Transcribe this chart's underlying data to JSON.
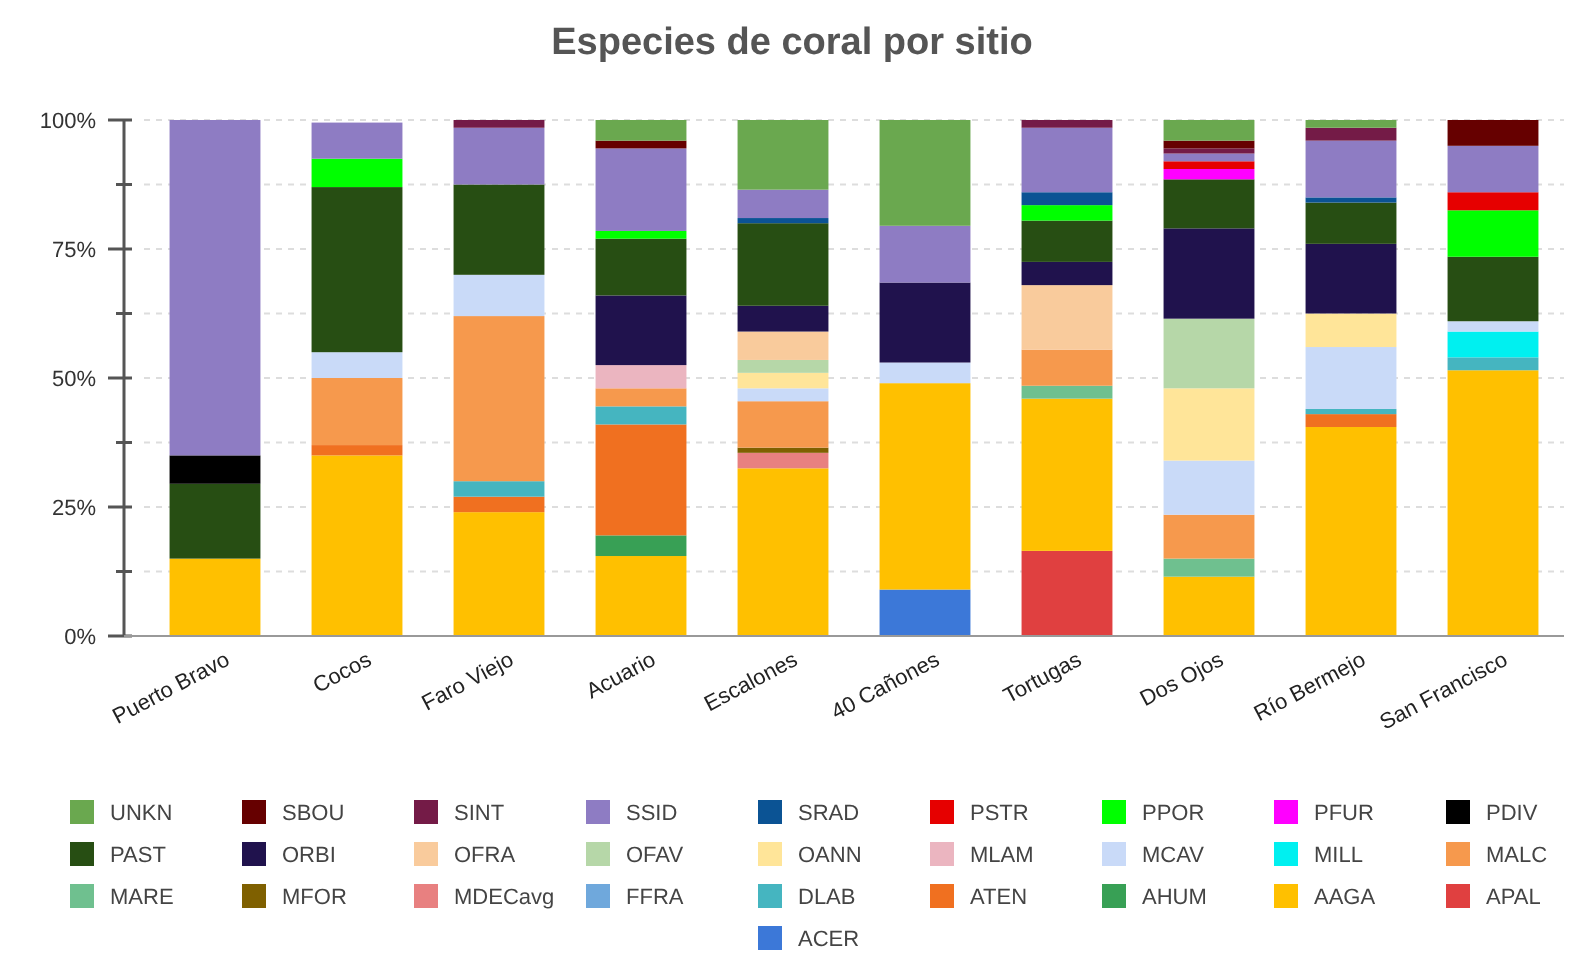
{
  "chart_data": {
    "type": "bar",
    "stacked": true,
    "title": "Especies de coral por sitio",
    "categories": [
      "Puerto Bravo",
      "Cocos",
      "Faro Viejo",
      "Acuario",
      "Escalones",
      "40 Cañones",
      "Tortugas",
      "Dos Ojos",
      "Río Bermejo",
      "San Francisco"
    ],
    "ylim": [
      0,
      100
    ],
    "yticks": [
      {
        "value": 0,
        "label": "0%"
      },
      {
        "value": 12.5,
        "label": null
      },
      {
        "value": 25,
        "label": "25%"
      },
      {
        "value": 37.5,
        "label": null
      },
      {
        "value": 50,
        "label": "50%"
      },
      {
        "value": 62.5,
        "label": null
      },
      {
        "value": 75,
        "label": "75%"
      },
      {
        "value": 87.5,
        "label": null
      },
      {
        "value": 100,
        "label": "100%"
      }
    ],
    "grid": "y",
    "legend": "bottom",
    "series": [
      {
        "name": "ACER",
        "color": "#3c78d8",
        "values": [
          null,
          null,
          null,
          null,
          null,
          9,
          null,
          null,
          null,
          null
        ]
      },
      {
        "name": "APAL",
        "color": "#e04040",
        "values": [
          null,
          null,
          null,
          null,
          null,
          null,
          16.5,
          null,
          null,
          null
        ]
      },
      {
        "name": "AAGA",
        "color": "#ffc000",
        "values": [
          15,
          35,
          24,
          15.5,
          32.5,
          40,
          29.5,
          11.5,
          40.5,
          51.5
        ]
      },
      {
        "name": "AHUM",
        "color": "#38a055",
        "values": [
          null,
          null,
          null,
          4,
          null,
          null,
          null,
          null,
          null,
          null
        ]
      },
      {
        "name": "ATEN",
        "color": "#f07020",
        "values": [
          null,
          2,
          3,
          21.5,
          null,
          null,
          null,
          null,
          2.5,
          null
        ]
      },
      {
        "name": "DLAB",
        "color": "#45b5c0",
        "values": [
          null,
          null,
          3,
          3.5,
          null,
          null,
          null,
          null,
          1,
          2.5
        ]
      },
      {
        "name": "FFRA",
        "color": "#6fa8dc",
        "values": [
          null,
          null,
          null,
          null,
          null,
          null,
          null,
          null,
          null,
          null
        ]
      },
      {
        "name": "MDECavg",
        "color": "#e88080",
        "values": [
          null,
          null,
          null,
          null,
          3,
          null,
          null,
          null,
          null,
          null
        ]
      },
      {
        "name": "MFOR",
        "color": "#7f6000",
        "values": [
          null,
          null,
          null,
          null,
          1,
          null,
          null,
          null,
          null,
          null
        ]
      },
      {
        "name": "MARE",
        "color": "#6fc08f",
        "values": [
          null,
          null,
          null,
          null,
          null,
          null,
          2.5,
          3.5,
          null,
          null
        ]
      },
      {
        "name": "MALC",
        "color": "#f6994d",
        "values": [
          null,
          13,
          32,
          3.5,
          9,
          null,
          7,
          8.5,
          null,
          null
        ]
      },
      {
        "name": "MILL",
        "color": "#00f0f0",
        "values": [
          null,
          null,
          null,
          null,
          null,
          null,
          null,
          null,
          null,
          5
        ]
      },
      {
        "name": "MCAV",
        "color": "#c9daf8",
        "values": [
          null,
          5,
          8,
          null,
          2.5,
          4,
          null,
          10.5,
          12,
          2
        ]
      },
      {
        "name": "MLAM",
        "color": "#ebb5c0",
        "values": [
          null,
          null,
          null,
          4.5,
          null,
          null,
          null,
          null,
          null,
          null
        ]
      },
      {
        "name": "OANN",
        "color": "#ffe599",
        "values": [
          null,
          null,
          null,
          null,
          3,
          null,
          null,
          14,
          6.5,
          null
        ]
      },
      {
        "name": "OFAV",
        "color": "#b6d7a8",
        "values": [
          null,
          null,
          null,
          null,
          2.5,
          null,
          null,
          13.5,
          null,
          null
        ]
      },
      {
        "name": "OFRA",
        "color": "#f9cb9c",
        "values": [
          null,
          null,
          null,
          null,
          5.5,
          null,
          12.5,
          null,
          null,
          null
        ]
      },
      {
        "name": "ORBI",
        "color": "#20124d",
        "values": [
          null,
          null,
          null,
          13.5,
          5,
          15.5,
          4.5,
          17.5,
          13.5,
          null
        ]
      },
      {
        "name": "PAST",
        "color": "#274e13",
        "values": [
          14.5,
          32,
          17.5,
          11,
          16,
          null,
          8,
          9.5,
          8,
          12.5
        ]
      },
      {
        "name": "PDIV",
        "color": "#000000",
        "values": [
          5.5,
          null,
          null,
          null,
          null,
          null,
          null,
          null,
          null,
          null
        ]
      },
      {
        "name": "PFUR",
        "color": "#ff00ff",
        "values": [
          null,
          null,
          null,
          null,
          null,
          null,
          null,
          2,
          null,
          null
        ]
      },
      {
        "name": "PPOR",
        "color": "#00ff00",
        "values": [
          null,
          5.5,
          null,
          1.5,
          null,
          null,
          3,
          null,
          null,
          9
        ]
      },
      {
        "name": "PSTR",
        "color": "#e60000",
        "values": [
          null,
          null,
          null,
          null,
          null,
          null,
          null,
          1.5,
          null,
          3.5
        ]
      },
      {
        "name": "SRAD",
        "color": "#0b5394",
        "values": [
          null,
          null,
          null,
          null,
          1,
          null,
          2.5,
          null,
          1,
          null
        ]
      },
      {
        "name": "SSID",
        "color": "#8e7cc3",
        "values": [
          65,
          7,
          11,
          16,
          5.5,
          11,
          12.5,
          1.5,
          11,
          9
        ]
      },
      {
        "name": "SINT",
        "color": "#741b47",
        "values": [
          null,
          null,
          1.5,
          null,
          null,
          null,
          1.5,
          1,
          2.5,
          null
        ]
      },
      {
        "name": "SBOU",
        "color": "#660000",
        "values": [
          null,
          null,
          null,
          1.5,
          null,
          null,
          null,
          1.5,
          null,
          5
        ]
      },
      {
        "name": "UNKN",
        "color": "#6aa84f",
        "values": [
          null,
          null,
          null,
          4,
          13.5,
          20.5,
          null,
          4,
          1.5,
          null
        ]
      }
    ]
  }
}
